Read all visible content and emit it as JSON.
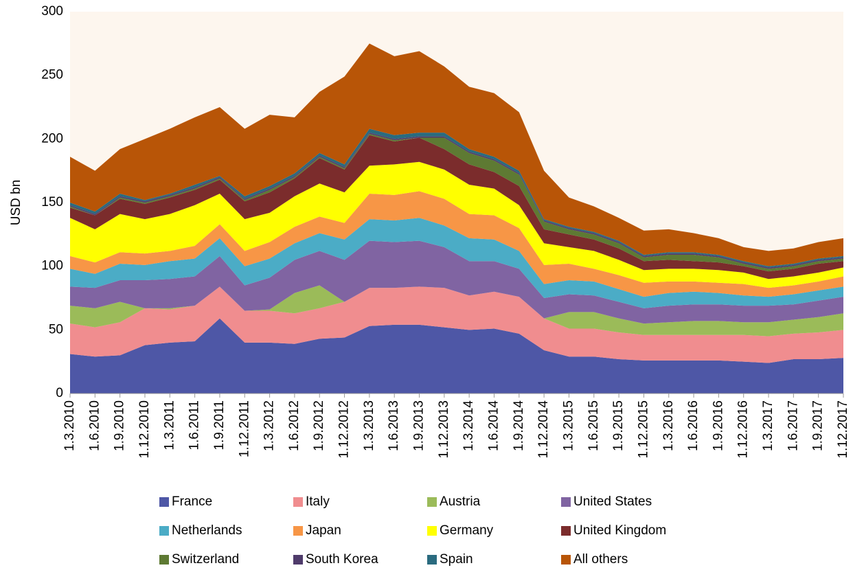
{
  "chart_data": {
    "type": "stacked_area",
    "y_label": "USD bn",
    "categories": [
      "1.3.2010",
      "1.6.2010",
      "1.9.2010",
      "1.12.2010",
      "1.3.2011",
      "1.6.2011",
      "1.9.2011",
      "1.12.2011",
      "1.3.2012",
      "1.6.2012",
      "1.9.2012",
      "1.12.2012",
      "1.3.2013",
      "1.6.2013",
      "1.9.2013",
      "1.12.2013",
      "1.3.2014",
      "1.6.2014",
      "1.9.2014",
      "1.12.2014",
      "1.3.2015",
      "1.6.2015",
      "1.9.2015",
      "1.12.2015",
      "1.3.2016",
      "1.6.2016",
      "1.9.2016",
      "1.12.2016",
      "1.3.2017",
      "1.6.2017",
      "1.9.2017",
      "1.12.2017"
    ],
    "series": [
      {
        "name": "France",
        "color": "#4e57a6",
        "values": [
          31,
          29,
          30,
          38,
          40,
          41,
          59,
          40,
          40,
          39,
          43,
          44,
          53,
          54,
          54,
          52,
          50,
          51,
          47,
          34,
          29,
          29,
          27,
          26,
          26,
          26,
          26,
          25,
          24,
          27,
          27,
          28
        ]
      },
      {
        "name": "Italy",
        "color": "#f08d8f",
        "values": [
          24,
          23,
          26,
          29,
          26,
          28,
          25,
          25,
          25,
          24,
          24,
          28,
          30,
          29,
          30,
          31,
          27,
          29,
          29,
          25,
          22,
          22,
          21,
          20,
          20,
          20,
          20,
          21,
          21,
          20,
          21,
          22
        ]
      },
      {
        "name": "Austria",
        "color": "#9bbb59",
        "values": [
          14,
          15,
          16,
          0,
          1,
          0,
          0,
          0,
          1,
          16,
          18,
          0,
          0,
          0,
          0,
          0,
          0,
          0,
          0,
          0,
          13,
          13,
          11,
          9,
          10,
          11,
          11,
          10,
          11,
          11,
          12,
          13
        ]
      },
      {
        "name": "United States",
        "color": "#8064a2",
        "values": [
          15,
          16,
          17,
          22,
          23,
          23,
          24,
          20,
          25,
          26,
          27,
          33,
          37,
          36,
          36,
          32,
          27,
          24,
          22,
          16,
          14,
          13,
          13,
          12,
          13,
          13,
          13,
          13,
          13,
          12,
          13,
          13
        ]
      },
      {
        "name": "Netherlands",
        "color": "#4bacc6",
        "values": [
          14,
          11,
          13,
          12,
          14,
          14,
          14,
          15,
          15,
          13,
          14,
          16,
          17,
          17,
          18,
          17,
          18,
          17,
          14,
          11,
          11,
          11,
          10,
          9,
          10,
          10,
          9,
          8,
          7,
          8,
          8,
          8
        ]
      },
      {
        "name": "Japan",
        "color": "#f79646",
        "values": [
          10,
          9,
          9,
          9,
          8,
          10,
          11,
          12,
          13,
          13,
          13,
          13,
          20,
          20,
          21,
          21,
          19,
          19,
          18,
          15,
          13,
          10,
          11,
          11,
          9,
          8,
          8,
          9,
          7,
          7,
          7,
          8
        ]
      },
      {
        "name": "Germany",
        "color": "#ffff00",
        "values": [
          30,
          26,
          30,
          27,
          29,
          32,
          24,
          25,
          23,
          24,
          26,
          24,
          22,
          24,
          23,
          23,
          23,
          21,
          18,
          17,
          13,
          14,
          12,
          10,
          10,
          10,
          10,
          9,
          7,
          7,
          7,
          7
        ]
      },
      {
        "name": "United Kingdom",
        "color": "#7b2c2c",
        "values": [
          8,
          11,
          12,
          12,
          13,
          12,
          11,
          14,
          16,
          14,
          20,
          18,
          24,
          18,
          19,
          16,
          16,
          13,
          15,
          11,
          10,
          9,
          9,
          7,
          7,
          6,
          6,
          5,
          6,
          6,
          7,
          5
        ]
      },
      {
        "name": "Switzerland",
        "color": "#5e7a33",
        "values": [
          1,
          0,
          1,
          1,
          1,
          1,
          1,
          1,
          2,
          1,
          1,
          1,
          1,
          1,
          0,
          9,
          9,
          9,
          9,
          6,
          4,
          4,
          4,
          3,
          4,
          5,
          4,
          2,
          2,
          2,
          2,
          2
        ]
      },
      {
        "name": "South Korea",
        "color": "#4f3b6b",
        "values": [
          1,
          1,
          1,
          1,
          1,
          1,
          1,
          1,
          1,
          1,
          1,
          1,
          1,
          1,
          1,
          1,
          1,
          1,
          1,
          1,
          1,
          1,
          1,
          1,
          1,
          1,
          1,
          1,
          1,
          1,
          1,
          1
        ]
      },
      {
        "name": "Spain",
        "color": "#2a6b7f",
        "values": [
          2,
          2,
          2,
          1,
          1,
          2,
          1,
          2,
          2,
          2,
          2,
          2,
          3,
          3,
          3,
          3,
          2,
          2,
          2,
          1,
          1,
          1,
          1,
          1,
          1,
          1,
          1,
          1,
          1,
          1,
          1,
          1
        ]
      },
      {
        "name": "All others",
        "color": "#b85507",
        "values": [
          36,
          32,
          35,
          48,
          51,
          53,
          54,
          53,
          56,
          44,
          48,
          69,
          67,
          62,
          64,
          52,
          49,
          50,
          46,
          38,
          23,
          20,
          18,
          19,
          18,
          15,
          13,
          11,
          12,
          12,
          13,
          14
        ]
      }
    ],
    "ylim": [
      0,
      300
    ],
    "yticks": [
      0,
      50,
      100,
      150,
      200,
      250,
      300
    ]
  }
}
